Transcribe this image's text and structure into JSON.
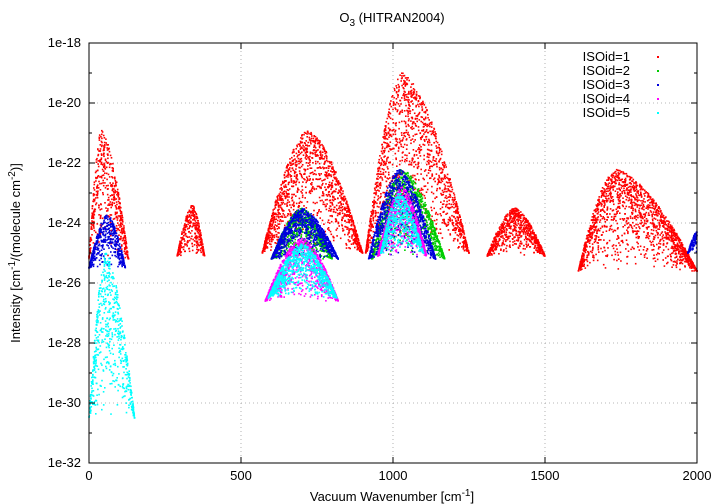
{
  "chart_data": {
    "type": "scatter",
    "title": "O",
    "title_subscript": "3",
    "title_suffix": " (HITRAN2004)",
    "xlabel": "Vacuum Wavenumber [cm",
    "xlabel_sup": "-1",
    "xlabel_end": "]",
    "ylabel_parts": [
      "Intensity [cm",
      "-1",
      "/(molecule cm",
      "-2",
      ")]"
    ],
    "xlim": [
      0,
      2000
    ],
    "ylim_exp": [
      -32,
      -18
    ],
    "y_scale": "log",
    "x_ticks": [
      {
        "value": 0,
        "label": "0"
      },
      {
        "value": 500,
        "label": "500"
      },
      {
        "value": 1000,
        "label": "1000"
      },
      {
        "value": 1500,
        "label": "1500"
      },
      {
        "value": 2000,
        "label": "2000"
      }
    ],
    "y_ticks": [
      {
        "exp": -18,
        "label": "1e-18"
      },
      {
        "exp": -20,
        "label": "1e-20"
      },
      {
        "exp": -22,
        "label": "1e-22"
      },
      {
        "exp": -24,
        "label": "1e-24"
      },
      {
        "exp": -26,
        "label": "1e-26"
      },
      {
        "exp": -28,
        "label": "1e-28"
      },
      {
        "exp": -30,
        "label": "1e-30"
      },
      {
        "exp": -32,
        "label": "1e-32"
      }
    ],
    "grid": true,
    "legend_position": "top-right",
    "series": [
      {
        "name": "ISOid=1",
        "color": "#ff0000",
        "bands": [
          {
            "x0": 0,
            "x1": 130,
            "peak_x": 40,
            "peak_exp": -20.9,
            "floor_exp": -25.2
          },
          {
            "x0": 290,
            "x1": 380,
            "peak_x": 340,
            "peak_exp": -23.4,
            "floor_exp": -25.1
          },
          {
            "x0": 570,
            "x1": 900,
            "peak_x": 720,
            "peak_exp": -20.9,
            "floor_exp": -25.0
          },
          {
            "x0": 910,
            "x1": 1250,
            "peak_x": 1030,
            "peak_exp": -19.0,
            "floor_exp": -25.0
          },
          {
            "x0": 1310,
            "x1": 1500,
            "peak_x": 1400,
            "peak_exp": -23.5,
            "floor_exp": -25.1
          },
          {
            "x0": 1610,
            "x1": 2000,
            "peak_x": 1730,
            "peak_exp": -22.2,
            "floor_exp": -25.6
          }
        ]
      },
      {
        "name": "ISOid=2",
        "color": "#00cc00",
        "bands": [
          {
            "x0": 600,
            "x1": 800,
            "peak_x": 700,
            "peak_exp": -23.5,
            "floor_exp": -25.2
          },
          {
            "x0": 930,
            "x1": 1170,
            "peak_x": 1030,
            "peak_exp": -22.2,
            "floor_exp": -25.2
          }
        ]
      },
      {
        "name": "ISOid=3",
        "color": "#0000dd",
        "bands": [
          {
            "x0": 0,
            "x1": 120,
            "peak_x": 60,
            "peak_exp": -23.7,
            "floor_exp": -25.5
          },
          {
            "x0": 600,
            "x1": 820,
            "peak_x": 700,
            "peak_exp": -23.5,
            "floor_exp": -25.2
          },
          {
            "x0": 920,
            "x1": 1140,
            "peak_x": 1020,
            "peak_exp": -22.2,
            "floor_exp": -25.2
          },
          {
            "x0": 1970,
            "x1": 2000,
            "peak_x": 2000,
            "peak_exp": -24.3,
            "floor_exp": -25.0
          }
        ]
      },
      {
        "name": "ISOid=4",
        "color": "#ff00ff",
        "bands": [
          {
            "x0": 580,
            "x1": 820,
            "peak_x": 700,
            "peak_exp": -24.5,
            "floor_exp": -26.6
          },
          {
            "x0": 950,
            "x1": 1110,
            "peak_x": 1030,
            "peak_exp": -22.8,
            "floor_exp": -25.1
          }
        ]
      },
      {
        "name": "ISOid=5",
        "color": "#00ffff",
        "bands": [
          {
            "x0": 0,
            "x1": 150,
            "peak_x": 55,
            "peak_exp": -25.0,
            "floor_exp": -30.5
          },
          {
            "x0": 590,
            "x1": 815,
            "peak_x": 700,
            "peak_exp": -24.7,
            "floor_exp": -26.5
          },
          {
            "x0": 960,
            "x1": 1100,
            "peak_x": 1020,
            "peak_exp": -23.0,
            "floor_exp": -25.0
          }
        ]
      }
    ]
  }
}
